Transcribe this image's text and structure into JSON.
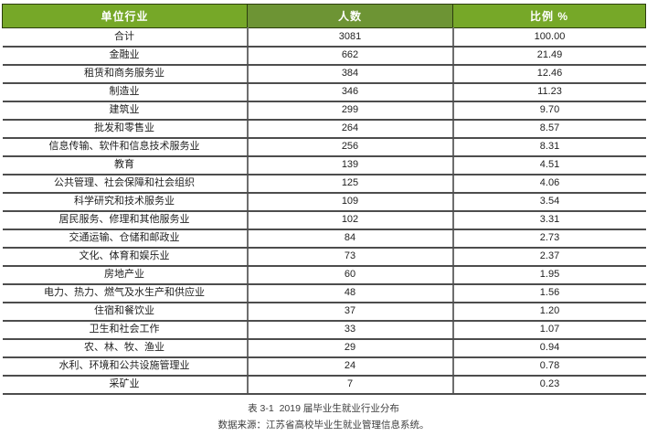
{
  "colors": {
    "header_green": "#76a828",
    "header_green_dark": "#6d9434",
    "grid_dark": "#4d4d4d",
    "grid_gray": "#6e6e6e"
  },
  "table": {
    "headers": [
      "单位行业",
      "人数",
      "比例 %"
    ],
    "rows": [
      {
        "industry": "合计",
        "count": "3081",
        "percent": "100.00"
      },
      {
        "industry": "金融业",
        "count": "662",
        "percent": "21.49"
      },
      {
        "industry": "租赁和商务服务业",
        "count": "384",
        "percent": "12.46"
      },
      {
        "industry": "制造业",
        "count": "346",
        "percent": "11.23"
      },
      {
        "industry": "建筑业",
        "count": "299",
        "percent": "9.70"
      },
      {
        "industry": "批发和零售业",
        "count": "264",
        "percent": "8.57"
      },
      {
        "industry": "信息传输、软件和信息技术服务业",
        "count": "256",
        "percent": "8.31"
      },
      {
        "industry": "教育",
        "count": "139",
        "percent": "4.51"
      },
      {
        "industry": "公共管理、社会保障和社会组织",
        "count": "125",
        "percent": "4.06"
      },
      {
        "industry": "科学研究和技术服务业",
        "count": "109",
        "percent": "3.54"
      },
      {
        "industry": "居民服务、修理和其他服务业",
        "count": "102",
        "percent": "3.31"
      },
      {
        "industry": "交通运输、仓储和邮政业",
        "count": "84",
        "percent": "2.73"
      },
      {
        "industry": "文化、体育和娱乐业",
        "count": "73",
        "percent": "2.37"
      },
      {
        "industry": "房地产业",
        "count": "60",
        "percent": "1.95"
      },
      {
        "industry": "电力、热力、燃气及水生产和供应业",
        "count": "48",
        "percent": "1.56"
      },
      {
        "industry": "住宿和餐饮业",
        "count": "37",
        "percent": "1.20"
      },
      {
        "industry": "卫生和社会工作",
        "count": "33",
        "percent": "1.07"
      },
      {
        "industry": "农、林、牧、渔业",
        "count": "29",
        "percent": "0.94"
      },
      {
        "industry": "水利、环境和公共设施管理业",
        "count": "24",
        "percent": "0.78"
      },
      {
        "industry": "采矿业",
        "count": "7",
        "percent": "0.23"
      }
    ]
  },
  "caption": {
    "title": "表 3-1  2019 届毕业生就业行业分布",
    "source": "数据来源：江苏省高校毕业生就业管理信息系统。"
  }
}
